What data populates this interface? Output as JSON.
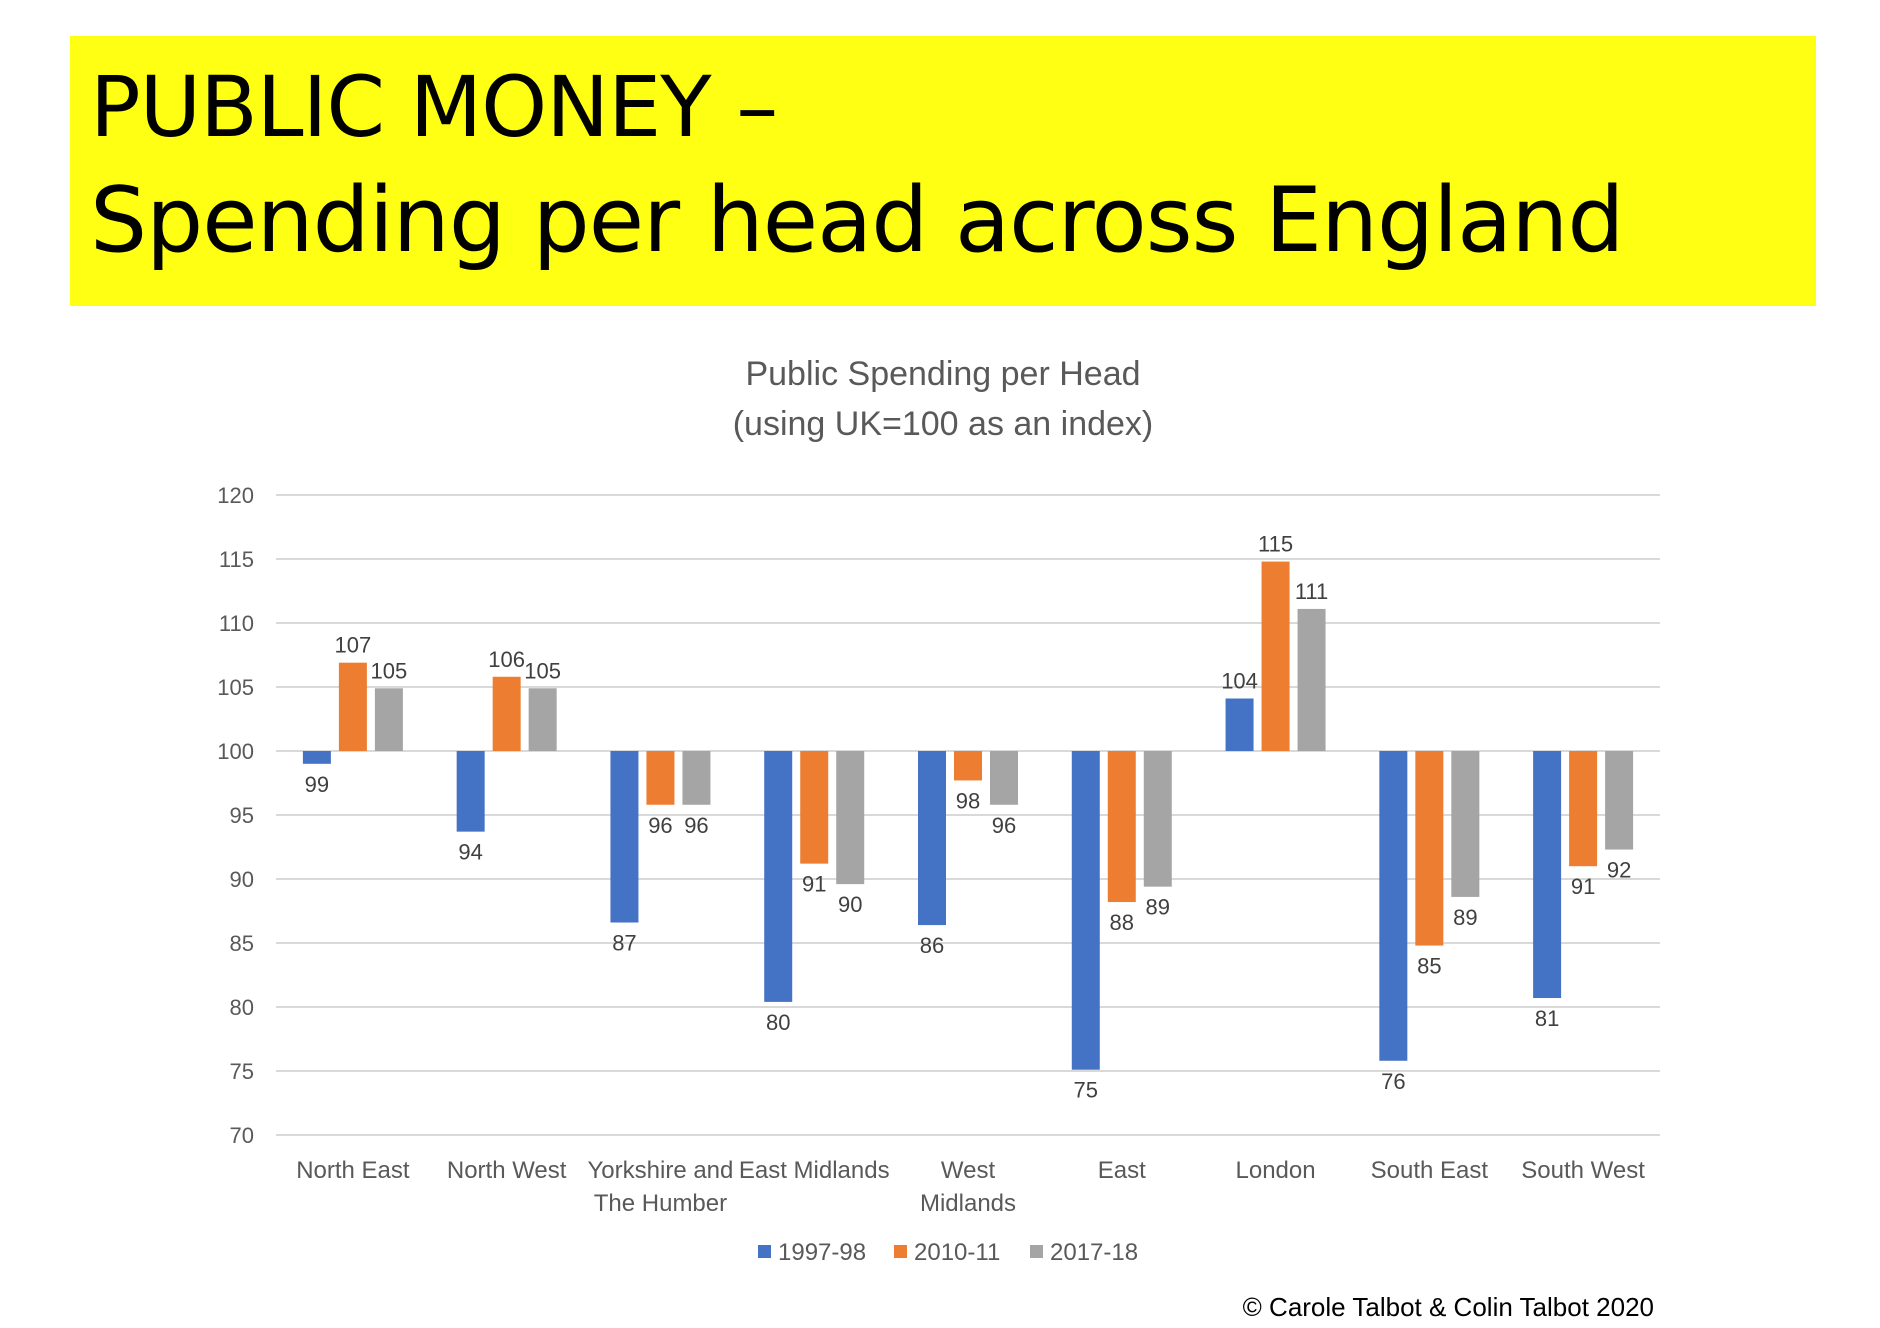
{
  "banner": {
    "line1": "PUBLIC MONEY –",
    "line2": "Spending per head across England",
    "background": "#ffff14"
  },
  "copyright": "© Carole Talbot & Colin Talbot 2020",
  "chart_data": {
    "type": "bar",
    "title_lines": [
      "Public Spending per Head",
      "(using UK=100 as an index)"
    ],
    "categories": [
      [
        "North East"
      ],
      [
        "North West"
      ],
      [
        "Yorkshire and",
        "The Humber"
      ],
      [
        "East Midlands"
      ],
      [
        "West",
        "Midlands"
      ],
      [
        "East"
      ],
      [
        "London"
      ],
      [
        "South East"
      ],
      [
        "South West"
      ]
    ],
    "baseline": 100,
    "ylim": [
      70,
      120
    ],
    "yticks": [
      70,
      75,
      80,
      85,
      90,
      95,
      100,
      105,
      110,
      115,
      120
    ],
    "grid": true,
    "legend_position": "bottom",
    "series": [
      {
        "name": "1997-98",
        "color": "#4472c4",
        "values": [
          99,
          94,
          87,
          80,
          86,
          75,
          104,
          76,
          81
        ],
        "plot_values": [
          99,
          93.7,
          86.6,
          80.4,
          86.4,
          75.1,
          104.1,
          75.8,
          80.7
        ]
      },
      {
        "name": "2010-11",
        "color": "#ed7d31",
        "values": [
          107,
          106,
          96,
          91,
          98,
          88,
          115,
          85,
          91
        ],
        "plot_values": [
          106.9,
          105.8,
          95.8,
          91.2,
          97.7,
          88.2,
          114.8,
          84.8,
          91.0
        ]
      },
      {
        "name": "2017-18",
        "color": "#a5a5a5",
        "values": [
          105,
          105,
          96,
          90,
          96,
          89,
          111,
          89,
          92
        ],
        "plot_values": [
          104.9,
          104.9,
          95.8,
          89.6,
          95.8,
          89.4,
          111.1,
          88.6,
          92.3
        ]
      }
    ]
  }
}
